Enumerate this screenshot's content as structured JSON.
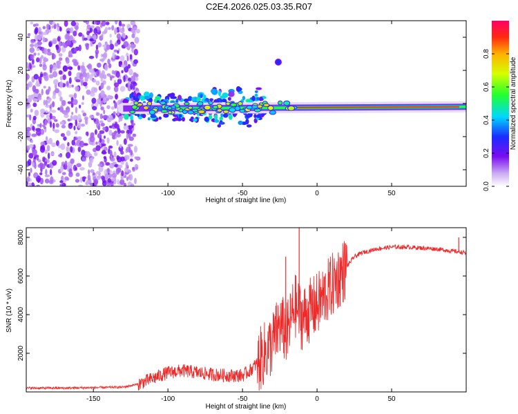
{
  "title": "C2E4.2026.025.03.35.R07",
  "colorbar_label": "Normalized spectral amplitude",
  "colorbar_ticks": [
    "0.0",
    "0.2",
    "0.4",
    "0.6",
    "0.8"
  ],
  "chart_data": [
    {
      "type": "heatmap",
      "name": "spectrogram",
      "xlabel": "Height of straight line (km)",
      "ylabel": "Frequency (Hz)",
      "xlim": [
        -195,
        100
      ],
      "ylim": [
        -50,
        50
      ],
      "xticks": [
        "-150",
        "-100",
        "-50",
        "0",
        "50"
      ],
      "yticks": [
        "40",
        "20",
        "0",
        "-20",
        "-40"
      ],
      "xtick_values": [
        -150,
        -100,
        -50,
        0,
        50
      ],
      "ytick_values": [
        40,
        20,
        0,
        -20,
        -40
      ],
      "colorbar_range": [
        0,
        1
      ],
      "features": [
        {
          "label": "noise region",
          "x_range": [
            -195,
            -120
          ],
          "y_range": [
            -50,
            50
          ],
          "amplitude": 0.1
        },
        {
          "label": "main line",
          "x_range": [
            -130,
            100
          ],
          "y_start": -3,
          "y_end": -2,
          "amplitude": 1.0
        },
        {
          "label": "isolated spot",
          "x": -26,
          "y": 25,
          "amplitude": 0.15
        }
      ]
    },
    {
      "type": "line",
      "name": "snr",
      "xlabel": "Height of straight line (km)",
      "ylabel": "SNR (10 * v/v)",
      "xlim": [
        -195,
        100
      ],
      "ylim": [
        0,
        8500
      ],
      "xticks": [
        "-150",
        "-100",
        "-50",
        "0",
        "50"
      ],
      "yticks": [
        "8000",
        "6000",
        "4000",
        "2000"
      ],
      "xtick_values": [
        -150,
        -100,
        -50,
        0,
        50
      ],
      "ytick_values": [
        8000,
        6000,
        4000,
        2000
      ],
      "color": "#ee2a2a",
      "x": [
        -195,
        -170,
        -150,
        -130,
        -120,
        -110,
        -100,
        -90,
        -80,
        -70,
        -60,
        -50,
        -45,
        -40,
        -35,
        -30,
        -25,
        -20,
        -15,
        -10,
        -5,
        0,
        5,
        10,
        15,
        20,
        25,
        30,
        40,
        50,
        60,
        70,
        80,
        90,
        100
      ],
      "y": [
        200,
        200,
        220,
        250,
        400,
        700,
        1000,
        1100,
        1000,
        900,
        850,
        850,
        1100,
        1500,
        2000,
        2500,
        3500,
        3000,
        4500,
        3800,
        4200,
        4500,
        5000,
        5500,
        6000,
        6500,
        7000,
        7200,
        7400,
        7500,
        7500,
        7450,
        7400,
        7300,
        7200
      ],
      "peaks": [
        {
          "x": -12,
          "y": 8500
        },
        {
          "x": -21,
          "y": 7000
        },
        {
          "x": 95,
          "y": 8000
        }
      ]
    }
  ]
}
